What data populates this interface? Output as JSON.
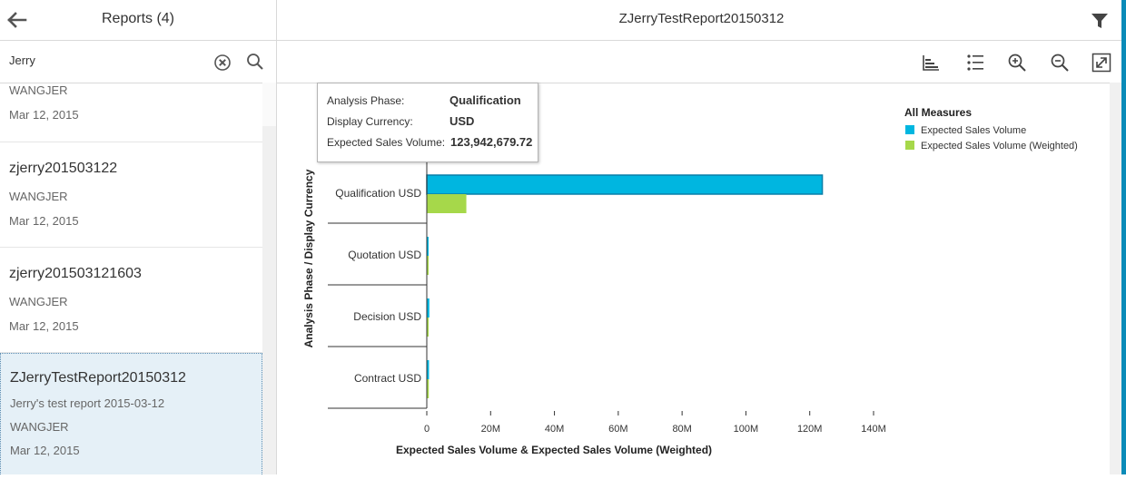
{
  "master": {
    "title": "Reports (4)",
    "search": {
      "value": "Jerry",
      "placeholder": ""
    },
    "partial_item": {
      "owner": "WANGJER",
      "date": "Mar 12, 2015"
    },
    "items": [
      {
        "title": "zjerry201503122",
        "owner": "WANGJER",
        "date": "Mar 12, 2015"
      },
      {
        "title": "zjerry201503121603",
        "owner": "WANGJER",
        "date": "Mar 12, 2015"
      },
      {
        "title": "ZJerryTestReport20150312",
        "description": "Jerry's test report 2015-03-12",
        "owner": "WANGJER",
        "date": "Mar 12, 2015"
      }
    ]
  },
  "detail": {
    "title": "ZJerryTestReport20150312",
    "toolbar": [
      "bar-chart-icon",
      "list-icon",
      "zoom-in-icon",
      "zoom-out-icon",
      "fullscreen-icon"
    ]
  },
  "tooltip": {
    "rows": [
      {
        "label": "Analysis Phase:",
        "value": "Qualification"
      },
      {
        "label": "Display Currency:",
        "value": "USD"
      },
      {
        "label": "Expected Sales Volume:",
        "value": "123,942,679.72"
      }
    ]
  },
  "colors": {
    "series1": "#00b6e0",
    "series2": "#a6d84a",
    "accent": "#0a8bb8"
  },
  "chart_data": {
    "type": "bar",
    "orientation": "horizontal",
    "categories": [
      "Qualification  USD",
      "Quotation  USD",
      "Decision  USD",
      "Contract  USD"
    ],
    "series": [
      {
        "name": "Expected Sales Volume",
        "values": [
          123942679.72,
          200000,
          800000,
          700000
        ]
      },
      {
        "name": "Expected Sales Volume (Weighted)",
        "values": [
          12394267.97,
          60000,
          480000,
          630000
        ]
      }
    ],
    "xlabel": "Expected Sales Volume & Expected Sales Volume (Weighted)",
    "ylabel": "Analysis Phase / Display Currency",
    "xlim": [
      0,
      140000000
    ],
    "xticks": [
      {
        "value": 0,
        "label": "0"
      },
      {
        "value": 20000000,
        "label": "20M"
      },
      {
        "value": 40000000,
        "label": "40M"
      },
      {
        "value": 60000000,
        "label": "60M"
      },
      {
        "value": 80000000,
        "label": "80M"
      },
      {
        "value": 100000000,
        "label": "100M"
      },
      {
        "value": 120000000,
        "label": "120M"
      },
      {
        "value": 140000000,
        "label": "140M"
      }
    ],
    "legend_title": "All Measures",
    "legend_position": "top-right"
  }
}
